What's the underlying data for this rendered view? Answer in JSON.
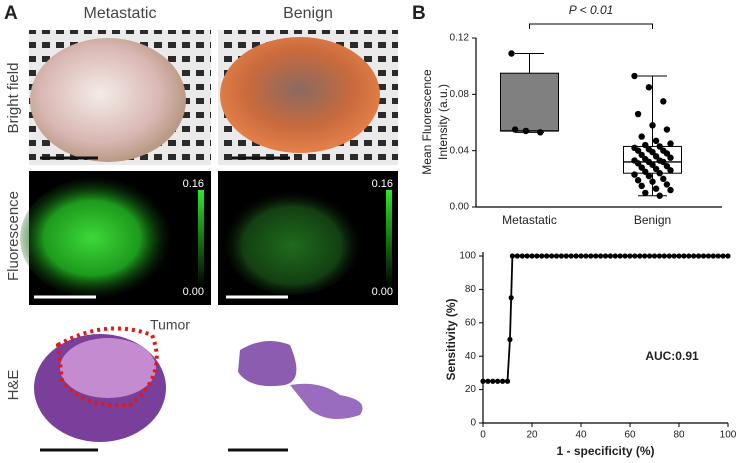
{
  "panel_a": {
    "label": "A",
    "columns": [
      "Metastatic",
      "Benign"
    ],
    "rows": [
      "Bright field",
      "Fluorescence",
      "H&E"
    ],
    "colorbar_labels": [
      "0.16",
      "0.00"
    ],
    "annotation": "Tumor"
  },
  "panel_b_label": "B",
  "chart_data": [
    {
      "type": "box",
      "ylabel": [
        "Mean Fluorescence",
        "Intensity (a.u.)"
      ],
      "annotation": "P < 0.01",
      "categories": [
        "Metastatic",
        "Benign"
      ],
      "min": [
        0.053,
        0.008
      ],
      "q1": [
        0.054,
        0.024
      ],
      "median": [
        0.054,
        0.032
      ],
      "q3": [
        0.095,
        0.043
      ],
      "max": [
        0.109,
        0.093
      ],
      "points": [
        [
          0.109,
          0.054,
          0.053,
          0.055
        ],
        [
          0.093,
          0.085,
          0.075,
          0.066,
          0.058,
          0.055,
          0.05,
          0.047,
          0.045,
          0.044,
          0.043,
          0.042,
          0.041,
          0.04,
          0.04,
          0.039,
          0.038,
          0.037,
          0.036,
          0.035,
          0.034,
          0.033,
          0.033,
          0.032,
          0.032,
          0.031,
          0.03,
          0.029,
          0.028,
          0.027,
          0.026,
          0.025,
          0.024,
          0.023,
          0.022,
          0.02,
          0.019,
          0.018,
          0.016,
          0.015,
          0.013,
          0.012,
          0.01,
          0.008
        ]
      ],
      "colors": [
        "#808080",
        "#ffffff"
      ],
      "ylim": [
        0,
        0.12
      ],
      "yticks": [
        {
          "value": 0,
          "label": "0.00"
        },
        0.04,
        0.08,
        0.12
      ]
    },
    {
      "type": "line",
      "xlabel": "1 - specificity (%)",
      "ylabel": "Sensitivity (%)",
      "annotation": "AUC:0.91",
      "color": "#000000",
      "x": [
        0,
        2,
        4,
        6,
        8,
        10,
        11,
        11.5,
        12,
        14,
        16,
        18,
        20,
        22,
        24,
        26,
        28,
        30,
        32,
        34,
        36,
        38,
        40,
        42,
        44,
        46,
        48,
        50,
        52,
        54,
        56,
        58,
        60,
        62,
        64,
        66,
        68,
        70,
        72,
        74,
        76,
        78,
        80,
        82,
        84,
        86,
        88,
        90,
        92,
        94,
        96,
        98,
        100
      ],
      "values": [
        25,
        25,
        25,
        25,
        25,
        25,
        50,
        75,
        100,
        100,
        100,
        100,
        100,
        100,
        100,
        100,
        100,
        100,
        100,
        100,
        100,
        100,
        100,
        100,
        100,
        100,
        100,
        100,
        100,
        100,
        100,
        100,
        100,
        100,
        100,
        100,
        100,
        100,
        100,
        100,
        100,
        100,
        100,
        100,
        100,
        100,
        100,
        100,
        100,
        100,
        100,
        100,
        100
      ],
      "xlim": [
        0,
        100
      ],
      "xticks": [
        0,
        20,
        40,
        60,
        80,
        100
      ],
      "ylim": [
        0,
        100
      ],
      "yticks": [
        0,
        20,
        40,
        60,
        80,
        100
      ]
    }
  ]
}
